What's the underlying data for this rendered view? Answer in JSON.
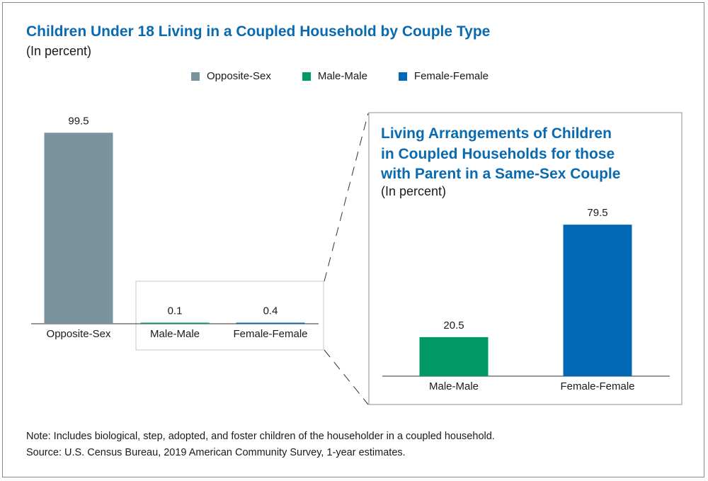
{
  "title": "Children Under 18 Living in a Coupled Household by Couple Type",
  "subtitle": "(In percent)",
  "colors": {
    "opposite_sex": "#7b939e",
    "male_male": "#009966",
    "female_female": "#0068b4",
    "title": "#0a6ab0"
  },
  "legend": [
    {
      "label": "Opposite-Sex",
      "color": "#7b939e"
    },
    {
      "label": "Male-Male",
      "color": "#009966"
    },
    {
      "label": "Female-Female",
      "color": "#0068b4"
    }
  ],
  "notes": {
    "note": "Note: Includes biological, step, adopted, and foster children of the householder in a coupled household.",
    "source": "Source: U.S. Census Bureau, 2019 American Community Survey, 1-year estimates."
  },
  "chart_data": [
    {
      "type": "bar",
      "title": "Children Under 18 Living in a Coupled Household by Couple Type",
      "subtitle": "(In percent)",
      "categories": [
        "Opposite-Sex",
        "Male-Male",
        "Female-Female"
      ],
      "values": [
        99.5,
        0.1,
        0.4
      ],
      "value_labels": [
        "99.5",
        "0.1",
        "0.4"
      ],
      "colors": [
        "#7b939e",
        "#009966",
        "#0068b4"
      ],
      "ylim": [
        0,
        100
      ],
      "grid": false,
      "legend": "top"
    },
    {
      "type": "bar",
      "title_lines": [
        "Living Arrangements of Children",
        "in Coupled Households for those",
        "with Parent in a Same-Sex Couple"
      ],
      "subtitle": "(In percent)",
      "categories": [
        "Male-Male",
        "Female-Female"
      ],
      "values": [
        20.5,
        79.5
      ],
      "value_labels": [
        "20.5",
        "79.5"
      ],
      "colors": [
        "#009966",
        "#0068b4"
      ],
      "ylim": [
        0,
        100
      ],
      "grid": false
    }
  ]
}
